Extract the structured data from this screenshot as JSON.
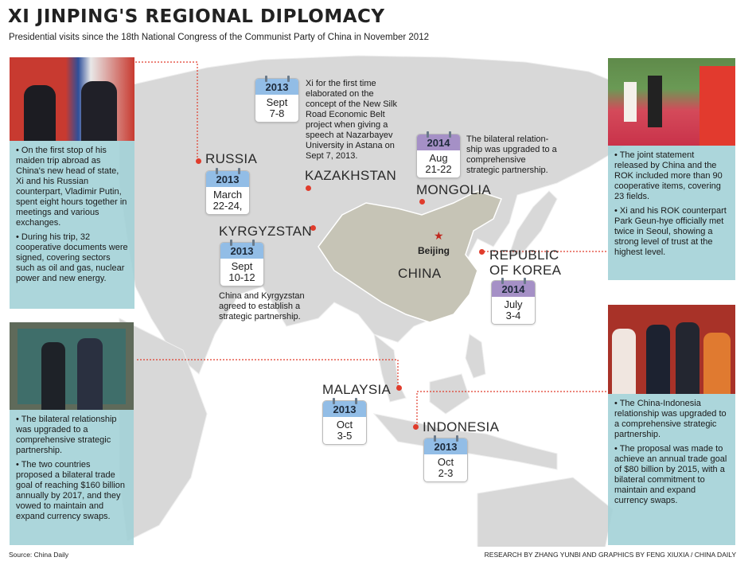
{
  "header": {
    "title": "XI JINPING'S REGIONAL DIPLOMACY",
    "subtitle": "Presidential visits since the 18th National Congress of the Communist Party of China in November 2012"
  },
  "colors": {
    "panel": "#a0d0d6",
    "calendar_2013": "#92bde6",
    "calendar_2014": "#a590c6",
    "dot": "#e03c2c",
    "land": "#d8d8d8",
    "china": "#c6c4b6"
  },
  "map": {
    "capital": {
      "label": "Beijing",
      "icon": "star-icon"
    },
    "china_label": "CHINA",
    "countries": [
      {
        "name": "RUSSIA",
        "year": "2013",
        "date1": "March",
        "date2": "22-24,"
      },
      {
        "name": "KAZAKHSTAN",
        "year": "2013",
        "date1": "Sept",
        "date2": "7-8",
        "note": "Xi for the first time elaborated on the concept of the New Silk Road Economic Belt project when giving a speech at Nazarbayev University in Astana on Sept 7, 2013."
      },
      {
        "name": "MONGOLIA",
        "year": "2014",
        "date1": "Aug",
        "date2": "21-22",
        "note": "The bilateral relation-ship was upgraded to a comprehensive strategic partnership."
      },
      {
        "name": "KYRGYZSTAN",
        "year": "2013",
        "date1": "Sept",
        "date2": "10-12",
        "note": "China and Kyrgyzstan agreed to establish a strategic partnership."
      },
      {
        "name": "REPUBLIC OF KOREA",
        "year": "2014",
        "date1": "July",
        "date2": "3-4"
      },
      {
        "name": "MALAYSIA",
        "year": "2013",
        "date1": "Oct",
        "date2": "3-5"
      },
      {
        "name": "INDONESIA",
        "year": "2013",
        "date1": "Oct",
        "date2": "2-3"
      }
    ]
  },
  "panels": {
    "russia": [
      "• On the first stop of his maiden trip abroad as China's new head of state, Xi and his Russian counterpart, Vladimir Putin, spent eight hours together in meetings and various exchanges.",
      "• During his trip, 32 cooperative documents were signed, covering sectors such as oil and gas, nuclear power and new energy."
    ],
    "malaysia": [
      "• The bilateral relationship was upgraded to a comprehensive strategic partnership.",
      "• The two countries proposed a bilateral trade goal of reaching $160 billion annually by 2017, and they vowed to maintain and expand currency swaps."
    ],
    "korea": [
      "• The joint statement released by China and the ROK included more than 90 cooperative items, covering 23 fields.",
      "• Xi and his ROK counterpart Park Geun-hye officially met twice in Seoul, showing a strong level of trust at the highest level."
    ],
    "indonesia": [
      "• The China-Indonesia relationship was upgraded to a comprehensive strategic partnership.",
      "• The proposal was made to achieve an annual trade goal of $80 billion by 2015, with a bilateral commitment to maintain and expand currency swaps."
    ]
  },
  "footer": {
    "source": "Source: China Daily",
    "credit": "RESEARCH BY ZHANG YUNBI AND GRAPHICS BY FENG XIUXIA / CHINA DAILY"
  }
}
